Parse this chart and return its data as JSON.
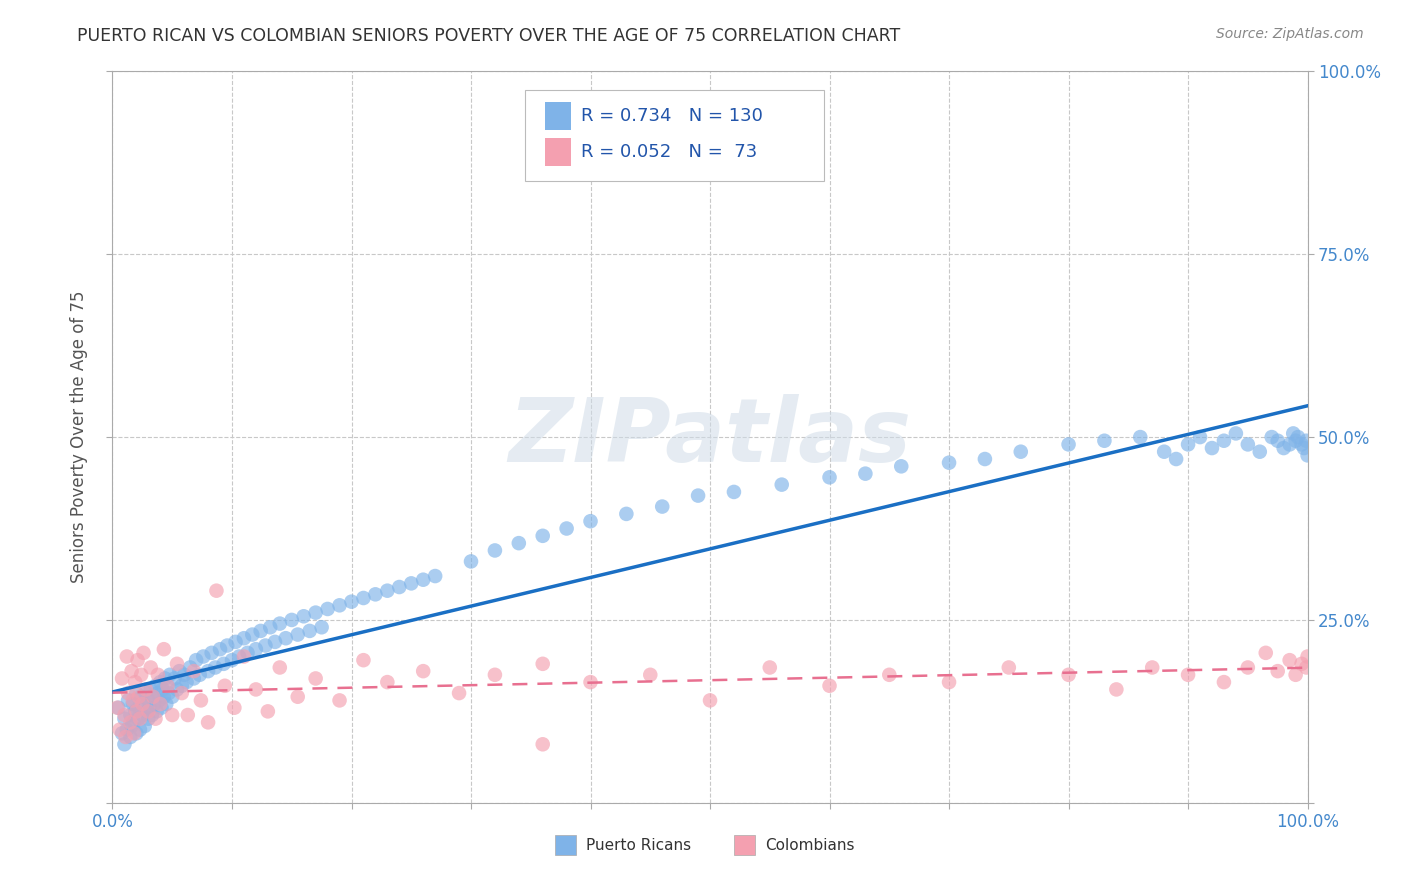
{
  "title": "PUERTO RICAN VS COLOMBIAN SENIORS POVERTY OVER THE AGE OF 75 CORRELATION CHART",
  "source": "Source: ZipAtlas.com",
  "ylabel": "Seniors Poverty Over the Age of 75",
  "xlim": [
    0,
    1
  ],
  "ylim": [
    0,
    1
  ],
  "xticks": [
    0.0,
    0.1,
    0.2,
    0.3,
    0.4,
    0.5,
    0.6,
    0.7,
    0.8,
    0.9,
    1.0
  ],
  "yticks": [
    0.0,
    0.25,
    0.5,
    0.75,
    1.0
  ],
  "xticklabels": [
    "0.0%",
    "",
    "",
    "",
    "",
    "",
    "",
    "",
    "",
    "",
    "100.0%"
  ],
  "yticklabels_right": [
    "",
    "25.0%",
    "50.0%",
    "75.0%",
    "100.0%"
  ],
  "pr_R": 0.734,
  "pr_N": 130,
  "col_R": 0.052,
  "col_N": 73,
  "pr_color": "#7fb3e8",
  "col_color": "#f4a0b0",
  "pr_line_color": "#1a6fc4",
  "col_line_color": "#e87090",
  "watermark": "ZIPatlas",
  "background_color": "#ffffff",
  "grid_color": "#c8c8c8",
  "title_color": "#333333",
  "legend_color": "#2255aa",
  "pr_scatter_x": [
    0.005,
    0.008,
    0.01,
    0.01,
    0.012,
    0.013,
    0.015,
    0.015,
    0.016,
    0.017,
    0.018,
    0.019,
    0.02,
    0.02,
    0.021,
    0.022,
    0.023,
    0.024,
    0.025,
    0.026,
    0.027,
    0.028,
    0.029,
    0.03,
    0.03,
    0.031,
    0.032,
    0.033,
    0.034,
    0.035,
    0.036,
    0.037,
    0.038,
    0.039,
    0.04,
    0.041,
    0.042,
    0.043,
    0.044,
    0.045,
    0.046,
    0.047,
    0.048,
    0.05,
    0.052,
    0.054,
    0.056,
    0.058,
    0.06,
    0.062,
    0.065,
    0.068,
    0.07,
    0.073,
    0.076,
    0.08,
    0.083,
    0.086,
    0.09,
    0.093,
    0.096,
    0.1,
    0.103,
    0.106,
    0.11,
    0.113,
    0.117,
    0.12,
    0.124,
    0.128,
    0.132,
    0.136,
    0.14,
    0.145,
    0.15,
    0.155,
    0.16,
    0.165,
    0.17,
    0.175,
    0.18,
    0.19,
    0.2,
    0.21,
    0.22,
    0.23,
    0.24,
    0.25,
    0.26,
    0.27,
    0.3,
    0.32,
    0.34,
    0.36,
    0.38,
    0.4,
    0.43,
    0.46,
    0.49,
    0.52,
    0.56,
    0.6,
    0.63,
    0.66,
    0.7,
    0.73,
    0.76,
    0.8,
    0.83,
    0.86,
    0.88,
    0.89,
    0.9,
    0.91,
    0.92,
    0.93,
    0.94,
    0.95,
    0.96,
    0.97,
    0.975,
    0.98,
    0.985,
    0.988,
    0.99,
    0.992,
    0.995,
    0.997,
    0.999,
    1.0
  ],
  "pr_scatter_y": [
    0.13,
    0.095,
    0.08,
    0.115,
    0.1,
    0.14,
    0.12,
    0.09,
    0.105,
    0.135,
    0.11,
    0.125,
    0.095,
    0.15,
    0.115,
    0.13,
    0.1,
    0.145,
    0.12,
    0.135,
    0.105,
    0.15,
    0.125,
    0.115,
    0.14,
    0.13,
    0.155,
    0.12,
    0.145,
    0.135,
    0.16,
    0.125,
    0.15,
    0.14,
    0.165,
    0.13,
    0.155,
    0.145,
    0.17,
    0.135,
    0.16,
    0.15,
    0.175,
    0.145,
    0.17,
    0.155,
    0.18,
    0.16,
    0.175,
    0.165,
    0.185,
    0.17,
    0.195,
    0.175,
    0.2,
    0.18,
    0.205,
    0.185,
    0.21,
    0.19,
    0.215,
    0.195,
    0.22,
    0.2,
    0.225,
    0.205,
    0.23,
    0.21,
    0.235,
    0.215,
    0.24,
    0.22,
    0.245,
    0.225,
    0.25,
    0.23,
    0.255,
    0.235,
    0.26,
    0.24,
    0.265,
    0.27,
    0.275,
    0.28,
    0.285,
    0.29,
    0.295,
    0.3,
    0.305,
    0.31,
    0.33,
    0.345,
    0.355,
    0.365,
    0.375,
    0.385,
    0.395,
    0.405,
    0.42,
    0.425,
    0.435,
    0.445,
    0.45,
    0.46,
    0.465,
    0.47,
    0.48,
    0.49,
    0.495,
    0.5,
    0.48,
    0.47,
    0.49,
    0.5,
    0.485,
    0.495,
    0.505,
    0.49,
    0.48,
    0.5,
    0.495,
    0.485,
    0.49,
    0.505,
    0.495,
    0.5,
    0.49,
    0.485,
    0.495,
    0.475
  ],
  "col_scatter_x": [
    0.004,
    0.006,
    0.008,
    0.01,
    0.011,
    0.012,
    0.013,
    0.015,
    0.016,
    0.017,
    0.018,
    0.019,
    0.02,
    0.021,
    0.022,
    0.023,
    0.024,
    0.025,
    0.026,
    0.028,
    0.03,
    0.032,
    0.034,
    0.036,
    0.038,
    0.04,
    0.043,
    0.046,
    0.05,
    0.054,
    0.058,
    0.063,
    0.068,
    0.074,
    0.08,
    0.087,
    0.094,
    0.102,
    0.11,
    0.12,
    0.13,
    0.14,
    0.155,
    0.17,
    0.19,
    0.21,
    0.23,
    0.26,
    0.29,
    0.32,
    0.36,
    0.4,
    0.45,
    0.5,
    0.55,
    0.6,
    0.65,
    0.7,
    0.75,
    0.8,
    0.84,
    0.87,
    0.9,
    0.93,
    0.95,
    0.965,
    0.975,
    0.985,
    0.99,
    0.995,
    0.999,
    1.0,
    0.36
  ],
  "col_scatter_y": [
    0.13,
    0.1,
    0.17,
    0.12,
    0.09,
    0.2,
    0.15,
    0.11,
    0.18,
    0.14,
    0.095,
    0.165,
    0.125,
    0.195,
    0.145,
    0.115,
    0.175,
    0.135,
    0.205,
    0.155,
    0.125,
    0.185,
    0.145,
    0.115,
    0.175,
    0.135,
    0.21,
    0.16,
    0.12,
    0.19,
    0.15,
    0.12,
    0.18,
    0.14,
    0.11,
    0.29,
    0.16,
    0.13,
    0.2,
    0.155,
    0.125,
    0.185,
    0.145,
    0.17,
    0.14,
    0.195,
    0.165,
    0.18,
    0.15,
    0.175,
    0.19,
    0.165,
    0.175,
    0.14,
    0.185,
    0.16,
    0.175,
    0.165,
    0.185,
    0.175,
    0.155,
    0.185,
    0.175,
    0.165,
    0.185,
    0.205,
    0.18,
    0.195,
    0.175,
    0.19,
    0.185,
    0.2,
    0.08
  ]
}
